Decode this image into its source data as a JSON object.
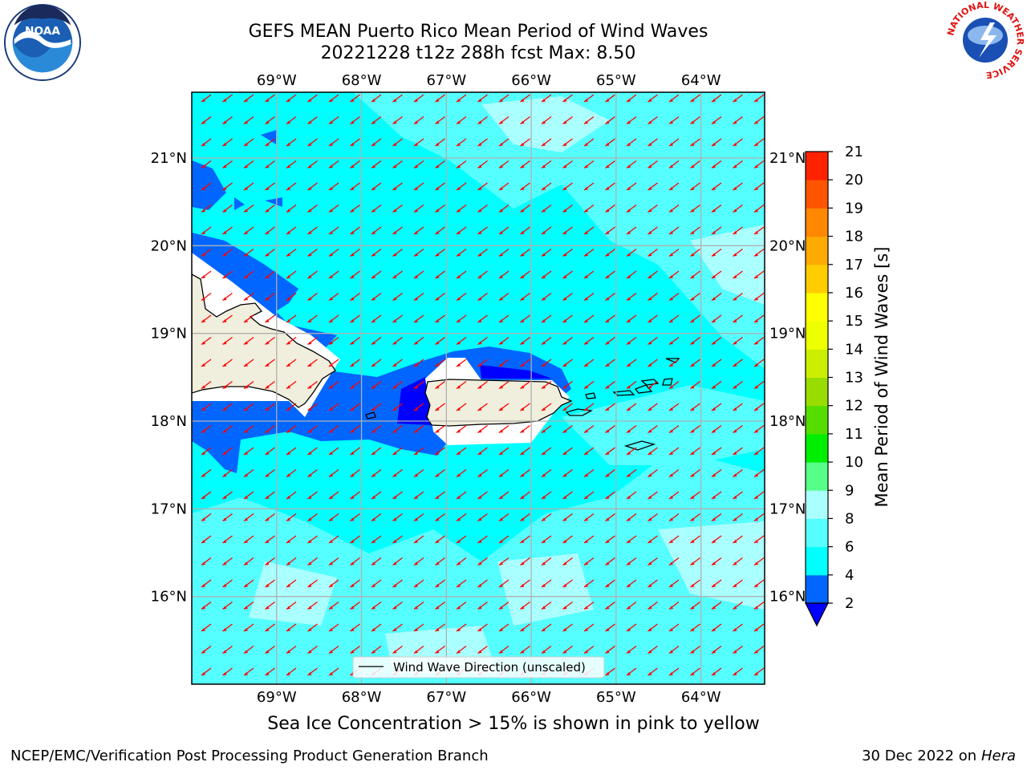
{
  "title": {
    "line1": "GEFS MEAN Puerto Rico Mean Period of Wind Waves",
    "line2": "20221228 t12z 288h fcst   Max: 8.50"
  },
  "map": {
    "lon_range": [
      -70.0,
      -63.25
    ],
    "lat_range": [
      15.0,
      21.75
    ],
    "lon_ticks": [
      {
        "value": -69,
        "label": "69°W"
      },
      {
        "value": -68,
        "label": "68°W"
      },
      {
        "value": -67,
        "label": "67°W"
      },
      {
        "value": -66,
        "label": "66°W"
      },
      {
        "value": -65,
        "label": "65°W"
      },
      {
        "value": -64,
        "label": "64°W"
      }
    ],
    "lat_ticks": [
      {
        "value": 21,
        "label": "21°N"
      },
      {
        "value": 20,
        "label": "20°N"
      },
      {
        "value": 19,
        "label": "19°N"
      },
      {
        "value": 18,
        "label": "18°N"
      },
      {
        "value": 17,
        "label": "17°N"
      },
      {
        "value": 16,
        "label": "16°N"
      }
    ],
    "ocean_color": "#00ffff",
    "land_color": "#f0eedc",
    "arrow_color": "#ff0000",
    "arrow_direction": "toward southwest",
    "legend_label": "Wind Wave Direction (unscaled)"
  },
  "colorbar": {
    "label": "Mean Period of Wind Waves [s]",
    "levels": [
      2,
      4,
      6,
      8,
      9,
      10,
      11,
      12,
      13,
      14,
      15,
      16,
      17,
      18,
      19,
      20,
      21
    ],
    "colors": [
      "#0066ff",
      "#00ffff",
      "#55ffff",
      "#aaffff",
      "#55ff88",
      "#00ee00",
      "#55dd00",
      "#99dd00",
      "#ccee00",
      "#eeff00",
      "#ffff00",
      "#ffcc00",
      "#ffaa00",
      "#ff8800",
      "#ff5500",
      "#ff2200"
    ],
    "under_color": "#0000ff",
    "over_color": "#ff0000"
  },
  "sea_ice_note": "Sea Ice Concentration > 15% is shown in pink to yellow",
  "footer": {
    "branch": "NCEP/EMC/Verification Post Processing Product Generation Branch",
    "date": "30 Dec 2022 on",
    "machine": "Hera"
  },
  "logos": {
    "noaa_text": "NOAA",
    "nws_text": "NATIONAL WEATHER SERVICE"
  }
}
